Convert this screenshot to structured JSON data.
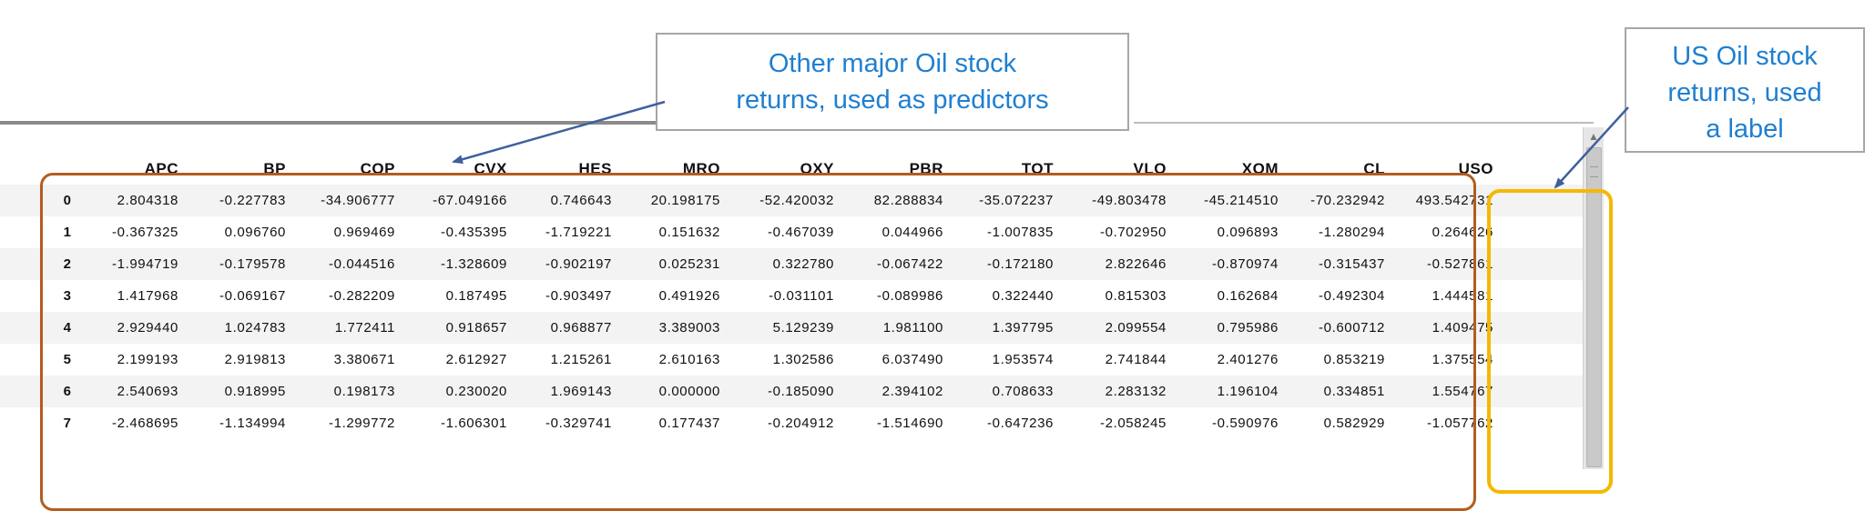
{
  "table": {
    "columns": [
      "APC",
      "BP",
      "COP",
      "CVX",
      "HES",
      "MRO",
      "OXY",
      "PBR",
      "TOT",
      "VLO",
      "XOM",
      "CL",
      "USO"
    ],
    "rows": [
      {
        "index": "0",
        "values": [
          "2.804318",
          "-0.227783",
          "-34.906777",
          "-67.049166",
          "0.746643",
          "20.198175",
          "-52.420032",
          "82.288834",
          "-35.072237",
          "-49.803478",
          "-45.214510",
          "-70.232942",
          "493.542731"
        ]
      },
      {
        "index": "1",
        "values": [
          "-0.367325",
          "0.096760",
          "0.969469",
          "-0.435395",
          "-1.719221",
          "0.151632",
          "-0.467039",
          "0.044966",
          "-1.007835",
          "-0.702950",
          "0.096893",
          "-1.280294",
          "0.264626"
        ]
      },
      {
        "index": "2",
        "values": [
          "-1.994719",
          "-0.179578",
          "-0.044516",
          "-1.328609",
          "-0.902197",
          "0.025231",
          "0.322780",
          "-0.067422",
          "-0.172180",
          "2.822646",
          "-0.870974",
          "-0.315437",
          "-0.527861"
        ]
      },
      {
        "index": "3",
        "values": [
          "1.417968",
          "-0.069167",
          "-0.282209",
          "0.187495",
          "-0.903497",
          "0.491926",
          "-0.031101",
          "-0.089986",
          "0.322440",
          "0.815303",
          "0.162684",
          "-0.492304",
          "1.444581"
        ]
      },
      {
        "index": "4",
        "values": [
          "2.929440",
          "1.024783",
          "1.772411",
          "0.918657",
          "0.968877",
          "3.389003",
          "5.129239",
          "1.981100",
          "1.397795",
          "2.099554",
          "0.795986",
          "-0.600712",
          "1.409475"
        ]
      },
      {
        "index": "5",
        "values": [
          "2.199193",
          "2.919813",
          "3.380671",
          "2.612927",
          "1.215261",
          "2.610163",
          "1.302586",
          "6.037490",
          "1.953574",
          "2.741844",
          "2.401276",
          "0.853219",
          "1.375554"
        ]
      },
      {
        "index": "6",
        "values": [
          "2.540693",
          "0.918995",
          "0.198173",
          "0.230020",
          "1.969143",
          "0.000000",
          "-0.185090",
          "2.394102",
          "0.708633",
          "2.283132",
          "1.196104",
          "0.334851",
          "1.554767"
        ]
      },
      {
        "index": "7",
        "values": [
          "-2.468695",
          "-1.134994",
          "-1.299772",
          "-1.606301",
          "-0.329741",
          "0.177437",
          "-0.204912",
          "-1.514690",
          "-0.647236",
          "-2.058245",
          "-0.590976",
          "0.582929",
          "-1.057762"
        ]
      }
    ]
  },
  "annotations": {
    "predictors_callout": [
      "Other major Oil stock",
      "returns, used as predictors"
    ],
    "label_callout": [
      "US Oil stock",
      "returns, used",
      "a label"
    ]
  },
  "colors": {
    "callout_text": "#1f7fd0",
    "predictor_box": "#b35c1e",
    "label_box": "#f5b800",
    "arrow": "#3f5f9f"
  },
  "icons": {
    "scroll_up": "triangle-up"
  }
}
